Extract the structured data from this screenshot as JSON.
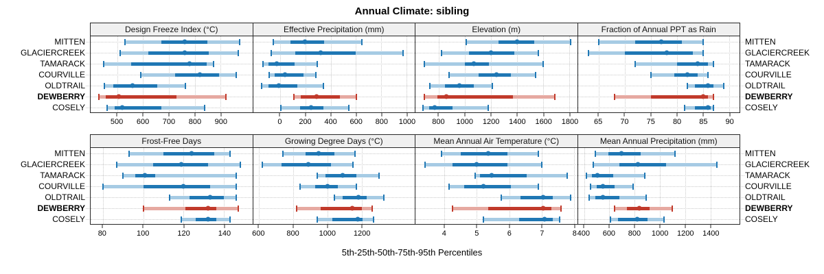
{
  "title": "Annual Climate: sibling",
  "caption": "5th-25th-50th-75th-95th Percentiles",
  "sites": [
    "MITTEN",
    "GLACIERCREEK",
    "TAMARACK",
    "COURVILLE",
    "OLDTRAIL",
    "DEWBERRY",
    "COSELY"
  ],
  "highlight_site": "DEWBERRY",
  "colors": {
    "series": "#1f77b4",
    "series_band": "#a6cbe4",
    "highlight": "#c13a2b",
    "highlight_band": "#e6a9a1",
    "grid": "#c9c9c9",
    "strip_bg": "#f0f0f0",
    "border": "#262626"
  },
  "chart_data": {
    "type": "percentile-dotplot",
    "percentiles": [
      5,
      25,
      50,
      75,
      95
    ],
    "legend": "dot = 50th percentile; thick bar = 25th-75th; light band with caps = 5th-95th",
    "panels": [
      {
        "title": "Design Freeze Index (°C)",
        "row": 0,
        "xlim": [
          397,
          1023
        ],
        "ticks": [
          500,
          600,
          700,
          800,
          900
        ],
        "values": {
          "MITTEN": [
            530,
            670,
            760,
            850,
            975
          ],
          "GLACIERCREEK": [
            510,
            620,
            762,
            855,
            968
          ],
          "TAMARACK": [
            447,
            553,
            781,
            847,
            873
          ],
          "COURVILLE": [
            590,
            725,
            820,
            895,
            960
          ],
          "OLDTRAIL": [
            450,
            485,
            558,
            655,
            765
          ],
          "DEWBERRY": [
            430,
            455,
            505,
            728,
            920
          ],
          "COSELY": [
            462,
            490,
            518,
            672,
            838
          ]
        }
      },
      {
        "title": "Effective Precipitation (mm)",
        "row": 0,
        "xlim": [
          -215,
          1065
        ],
        "ticks": [
          0,
          200,
          400,
          600,
          800,
          1000
        ],
        "values": {
          "MITTEN": [
            -55,
            80,
            195,
            350,
            645
          ],
          "GLACIERCREEK": [
            -70,
            120,
            320,
            595,
            975
          ],
          "TAMARACK": [
            -135,
            -95,
            -25,
            115,
            295
          ],
          "COURVILLE": [
            -85,
            -45,
            40,
            185,
            280
          ],
          "OLDTRAIL": [
            -145,
            -95,
            -10,
            135,
            340
          ],
          "DEWBERRY": [
            110,
            165,
            290,
            470,
            605
          ],
          "COSELY": [
            5,
            160,
            245,
            340,
            545
          ]
        }
      },
      {
        "title": "Elevation (m)",
        "row": 0,
        "xlim": [
          620,
          1860
        ],
        "ticks": [
          800,
          1000,
          1200,
          1400,
          1600,
          1800
        ],
        "values": {
          "MITTEN": [
            1010,
            1255,
            1400,
            1530,
            1810
          ],
          "GLACIERCREEK": [
            820,
            1030,
            1200,
            1380,
            1560
          ],
          "TAMARACK": [
            690,
            1000,
            1065,
            1185,
            1600
          ],
          "COURVILLE": [
            880,
            1105,
            1240,
            1350,
            1540
          ],
          "OLDTRAIL": [
            730,
            845,
            955,
            1065,
            1210
          ],
          "DEWBERRY": [
            690,
            790,
            855,
            1370,
            1690
          ],
          "COSELY": [
            680,
            725,
            765,
            905,
            1180
          ]
        }
      },
      {
        "title": "Fraction of Annual PPT as Rain",
        "row": 0,
        "xlim": [
          61,
          92
        ],
        "ticks": [
          65,
          70,
          75,
          80,
          85,
          90
        ],
        "values": {
          "MITTEN": [
            65,
            72,
            77,
            81,
            85
          ],
          "GLACIERCREEK": [
            63,
            70,
            78,
            83,
            85
          ],
          "TAMARACK": [
            72,
            80,
            84,
            86,
            87
          ],
          "COURVILLE": [
            75,
            79.5,
            82,
            84,
            86
          ],
          "OLDTRAIL": [
            82,
            83.5,
            86,
            87,
            89
          ],
          "DEWBERRY": [
            68,
            75,
            85,
            86,
            87
          ],
          "COSELY": [
            81.5,
            83.5,
            86,
            86.5,
            87
          ]
        }
      },
      {
        "title": "Frost-Free Days",
        "row": 1,
        "xlim": [
          74,
          154
        ],
        "ticks": [
          80,
          100,
          120,
          140
        ],
        "values": {
          "MITTEN": [
            93,
            110,
            124,
            135,
            143
          ],
          "GLACIERCREEK": [
            87,
            105,
            119,
            132,
            148
          ],
          "TAMARACK": [
            90,
            96,
            101,
            106,
            146
          ],
          "COURVILLE": [
            80,
            100,
            120,
            133,
            146
          ],
          "OLDTRAIL": [
            113,
            123,
            133,
            140,
            146
          ],
          "DEWBERRY": [
            100,
            121,
            132,
            136,
            147
          ],
          "COSELY": [
            119,
            126,
            132,
            136,
            143
          ]
        }
      },
      {
        "title": "Growing Degree Days (°C)",
        "row": 1,
        "xlim": [
          565,
          1510
        ],
        "ticks": [
          600,
          800,
          1000,
          1200
        ],
        "values": {
          "MITTEN": [
            740,
            870,
            950,
            1040,
            1160
          ],
          "GLACIERCREEK": [
            620,
            730,
            890,
            1020,
            1150
          ],
          "TAMARACK": [
            940,
            990,
            1090,
            1170,
            1300
          ],
          "COURVILLE": [
            840,
            930,
            1000,
            1060,
            1170
          ],
          "OLDTRAIL": [
            1040,
            1090,
            1180,
            1230,
            1330
          ],
          "DEWBERRY": [
            820,
            960,
            1145,
            1200,
            1260
          ],
          "COSELY": [
            940,
            1030,
            1175,
            1205,
            1270
          ]
        }
      },
      {
        "title": "Mean Annual Air Temperature (°C)",
        "row": 1,
        "xlim": [
          3.1,
          8.1
        ],
        "ticks": [
          4,
          5,
          6,
          7,
          8
        ],
        "values": {
          "MITTEN": [
            3.9,
            4.5,
            5.35,
            5.95,
            6.9
          ],
          "GLACIERCREEK": [
            3.4,
            4.25,
            5.0,
            5.95,
            7.0
          ],
          "TAMARACK": [
            4.95,
            5.1,
            5.45,
            6.55,
            7.8
          ],
          "COURVILLE": [
            4.15,
            4.6,
            5.2,
            6.05,
            6.9
          ],
          "OLDTRAIL": [
            5.75,
            6.35,
            7.05,
            7.35,
            7.9
          ],
          "DEWBERRY": [
            4.25,
            5.35,
            7.05,
            7.3,
            7.6
          ],
          "COSELY": [
            5.2,
            6.3,
            7.1,
            7.35,
            7.55
          ]
        }
      },
      {
        "title": "Mean Annual Precipitation (mm)",
        "row": 1,
        "xlim": [
          350,
          1630
        ],
        "ticks": [
          400,
          600,
          800,
          1000,
          1200,
          1400
        ],
        "values": {
          "MITTEN": [
            490,
            590,
            695,
            850,
            1120
          ],
          "GLACIERCREEK": [
            470,
            680,
            825,
            1050,
            1450
          ],
          "TAMARACK": [
            420,
            460,
            505,
            630,
            880
          ],
          "COURVILLE": [
            450,
            500,
            550,
            640,
            790
          ],
          "OLDTRAIL": [
            440,
            490,
            550,
            680,
            890
          ],
          "DEWBERRY": [
            640,
            740,
            835,
            920,
            1100
          ],
          "COSELY": [
            610,
            670,
            820,
            900,
            1030
          ]
        }
      }
    ]
  }
}
